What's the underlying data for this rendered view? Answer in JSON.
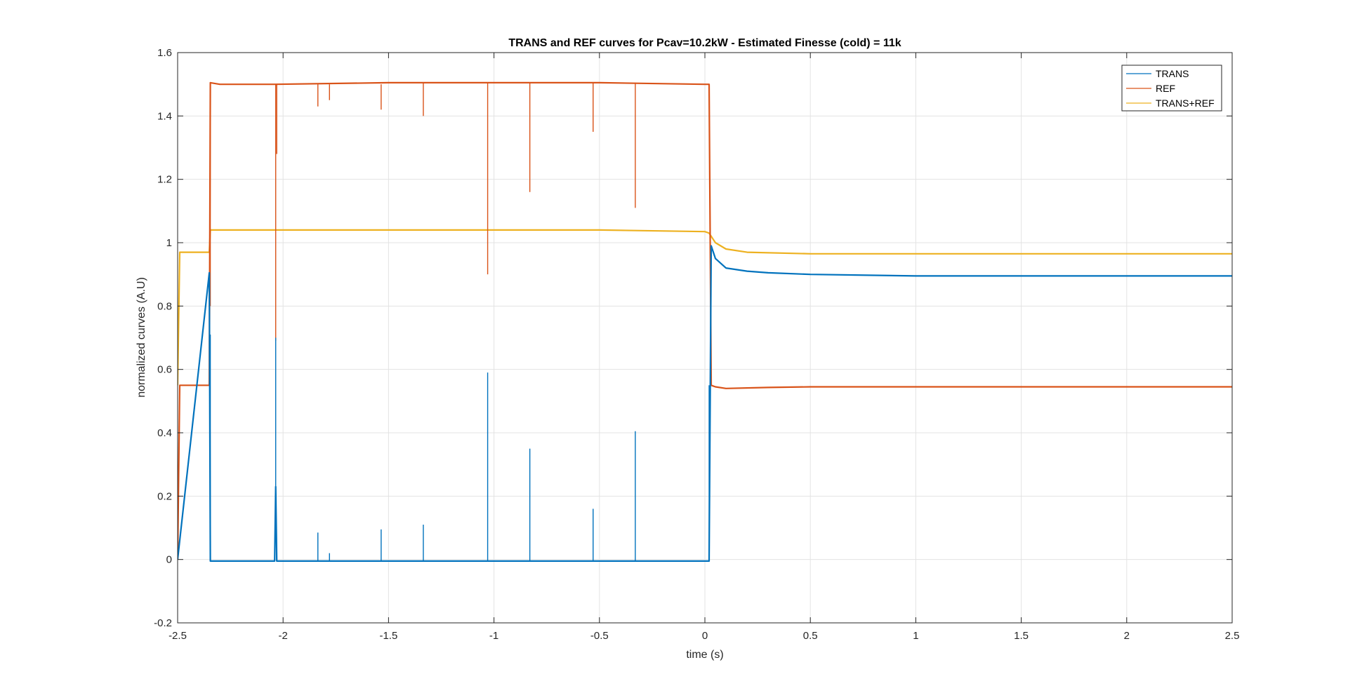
{
  "chart_data": {
    "type": "line",
    "title": "TRANS and REF curves for Pcav=10.2kW - Estimated Finesse (cold) = 11k",
    "xlabel": "time (s)",
    "ylabel": "normalized curves (A.U)",
    "xlim": [
      -2.5,
      2.5
    ],
    "ylim": [
      -0.2,
      1.6
    ],
    "grid": true,
    "legend_position": "top-right",
    "x_ticks": [
      -2.5,
      -2,
      -1.5,
      -1,
      -0.5,
      0,
      0.5,
      1,
      1.5,
      2,
      2.5
    ],
    "x_tick_labels": [
      "-2.5",
      "-2",
      "-1.5",
      "-1",
      "-0.5",
      "0",
      "0.5",
      "1",
      "1.5",
      "2",
      "2.5"
    ],
    "y_ticks": [
      -0.2,
      0,
      0.2,
      0.4,
      0.6,
      0.8,
      1,
      1.2,
      1.4,
      1.6
    ],
    "y_tick_labels": [
      "-0.2",
      "0",
      "0.2",
      "0.4",
      "0.6",
      "0.8",
      "1",
      "1.2",
      "1.4",
      "1.6"
    ],
    "series": [
      {
        "name": "TRANS",
        "color": "#0072bd",
        "x": [
          -2.5,
          -2.35,
          -2.345,
          -2.04,
          -2.035,
          -2.03,
          -1.5,
          -1.0,
          -0.5,
          0.0,
          0.02,
          0.03,
          0.05,
          0.1,
          0.2,
          0.3,
          0.5,
          1.0,
          1.5,
          2.0,
          2.5
        ],
        "y": [
          0.0,
          0.905,
          -0.005,
          -0.005,
          0.23,
          -0.005,
          -0.005,
          -0.005,
          -0.005,
          -0.005,
          -0.005,
          0.99,
          0.95,
          0.92,
          0.91,
          0.905,
          0.9,
          0.895,
          0.895,
          0.895,
          0.895
        ],
        "spikes": [
          {
            "x": -2.345,
            "y": 0.71
          },
          {
            "x": -2.035,
            "y": 0.7
          },
          {
            "x": -1.835,
            "y": 0.085
          },
          {
            "x": -1.78,
            "y": 0.02
          },
          {
            "x": -1.535,
            "y": 0.095
          },
          {
            "x": -1.335,
            "y": 0.11
          },
          {
            "x": -1.03,
            "y": 0.59
          },
          {
            "x": -0.83,
            "y": 0.35
          },
          {
            "x": -0.53,
            "y": 0.16
          },
          {
            "x": -0.33,
            "y": 0.405
          },
          {
            "x": 0.02,
            "y": 0.55
          }
        ]
      },
      {
        "name": "REF",
        "color": "#d95319",
        "x": [
          -2.5,
          -2.49,
          -2.35,
          -2.345,
          -2.3,
          -2.04,
          -1.5,
          -1.0,
          -0.5,
          0.0,
          0.02,
          0.03,
          0.05,
          0.1,
          0.3,
          0.5,
          1.0,
          1.5,
          2.0,
          2.5
        ],
        "y": [
          0.0,
          0.55,
          0.55,
          1.505,
          1.5,
          1.5,
          1.505,
          1.505,
          1.505,
          1.5,
          1.5,
          0.55,
          0.545,
          0.54,
          0.543,
          0.545,
          0.545,
          0.545,
          0.545,
          0.545
        ],
        "spikes": [
          {
            "x": -2.345,
            "y": 0.8
          },
          {
            "x": -2.035,
            "y": 0.69
          },
          {
            "x": -2.03,
            "y": 1.28
          },
          {
            "x": -1.835,
            "y": 1.43
          },
          {
            "x": -1.78,
            "y": 1.45
          },
          {
            "x": -1.535,
            "y": 1.42
          },
          {
            "x": -1.335,
            "y": 1.4
          },
          {
            "x": -1.03,
            "y": 0.9
          },
          {
            "x": -0.83,
            "y": 1.16
          },
          {
            "x": -0.53,
            "y": 1.35
          },
          {
            "x": -0.33,
            "y": 1.11
          }
        ]
      },
      {
        "name": "TRANS+REF",
        "color": "#edb120",
        "x": [
          -2.5,
          -2.49,
          -2.35,
          -2.345,
          -2.0,
          -1.5,
          -1.0,
          -0.5,
          0.0,
          0.02,
          0.05,
          0.1,
          0.2,
          0.5,
          1.0,
          1.5,
          2.0,
          2.5
        ],
        "y": [
          0.55,
          0.97,
          0.97,
          1.04,
          1.04,
          1.04,
          1.04,
          1.04,
          1.035,
          1.03,
          1.0,
          0.98,
          0.97,
          0.965,
          0.965,
          0.965,
          0.965,
          0.965
        ],
        "spikes": []
      }
    ]
  }
}
